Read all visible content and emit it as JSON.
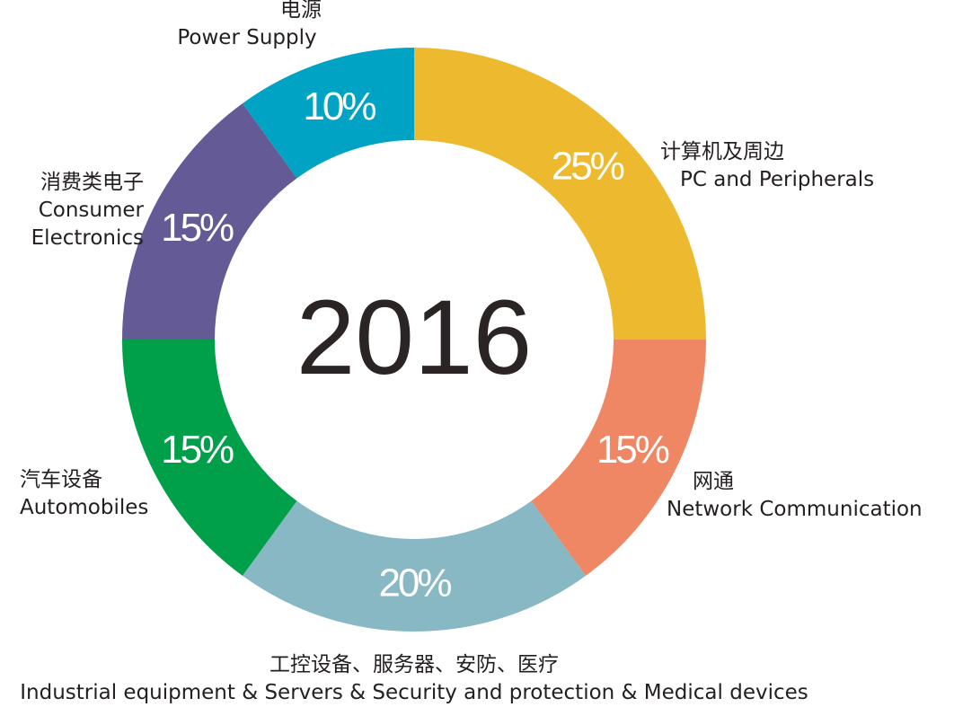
{
  "chart_data": {
    "type": "donut",
    "center_label": "2016",
    "categories": [
      "PC and Peripherals",
      "Network Communication",
      "Industrial equipment & Servers & Security and protection & Medical devices",
      "Automobiles",
      "Consumer Electronics",
      "Power Supply"
    ],
    "categories_zh": [
      "计算机及周边",
      "网通",
      "工控设备、服务器、安防、医疗",
      "汽车设备",
      "消费类电子",
      "电源"
    ],
    "values": [
      25,
      15,
      20,
      15,
      15,
      10
    ],
    "value_labels": [
      "25%",
      "15%",
      "20%",
      "15%",
      "15%",
      "10%"
    ],
    "colors": [
      "#edb92e",
      "#ef8764",
      "#87b8c4",
      "#00a04a",
      "#635a96",
      "#00a3c4"
    ]
  }
}
